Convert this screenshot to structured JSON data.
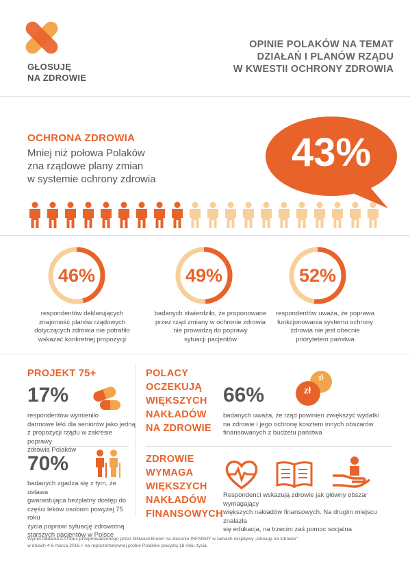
{
  "header": {
    "logo_line1": "GŁOSUJĘ",
    "logo_line2": "NA ZDROWIE",
    "title_line1": "OPINIE POLAKÓW NA TEMAT",
    "title_line2": "DZIAŁAŃ I PLANÓW RZĄDU",
    "title_line3": "W KWESTII OCHRONY ZDROWIA"
  },
  "health": {
    "heading": "OCHRONA ZDROWIA",
    "desc_line1": "Mniej niż połowa Polaków",
    "desc_line2": "zna rządowe plany zmian",
    "desc_line3": "w systemie ochrony zdrowia",
    "big_percent": "43%",
    "people_total": 20,
    "people_highlighted": 9
  },
  "stats": [
    {
      "value": "46%",
      "fraction": 0.46,
      "text": [
        "respondentów deklarujących",
        "znajomość planów rządowych",
        "dotyczących zdrowia nie potrafiło",
        "wskazać konkretnej propozycji"
      ]
    },
    {
      "value": "49%",
      "fraction": 0.49,
      "text": [
        "badanych stwierdziło, że proponowane",
        "przez rząd zmiany w ochronie zdrowia",
        "nie prowadzą do poprawy",
        "sytuacji pacjentów"
      ]
    },
    {
      "value": "52%",
      "fraction": 0.52,
      "text": [
        "respondentów uważa, że poprawa",
        "funkcjonowania systemu ochrony",
        "zdrowia nie jest obecnie",
        "priorytetem państwa"
      ]
    }
  ],
  "project": {
    "heading": "PROJEKT 75+",
    "pct1": "17%",
    "text1": [
      "respondentów wymieniło",
      "darmowe leki dla seniorów jako jedną",
      "z propozycji rządu w zakresie poprawy",
      "zdrowia Polaków"
    ],
    "pct2": "70%",
    "text2": [
      "badanych zgadza się z tym, że ustawa",
      "gwarantująca bezpłatny dostęp do",
      "części leków osobom powyżej 75 roku",
      "życia poprawi sytuację zdrowotną",
      "starszych pacjentów w Polsce"
    ]
  },
  "expect": {
    "heading": [
      "POLACY",
      "OCZEKUJĄ",
      "WIĘKSZYCH",
      "NAKŁADÓW",
      "NA ZDROWIE"
    ],
    "pct": "66%",
    "text": [
      "badanych uważa, że rząd powinien zwiększyć wydatki",
      "na zdrowie i jego ochronę kosztem innych obszarów",
      "finansowanych z budżetu państwa"
    ],
    "coin_label1": "zł",
    "coin_label2": "zł"
  },
  "needs": {
    "heading": [
      "ZDROWIE",
      "WYMAGA",
      "WIĘKSZYCH",
      "NAKŁADÓW",
      "FINANSOWYCH"
    ],
    "text": [
      "Respondenci wskazują zdrowie jak główny obszar wymagający",
      "większych nakładów finansowych. Na drugim miejscu znalazła",
      "się edukacja, na trzecim zaś pomoc socjalna"
    ]
  },
  "footnote": {
    "line1": "Wyniki badania CATIbus przeprowadzonego przez Millward Brown na zlecenie INFARMY w ramach inicjatywy „Głosuję na zdrowie\"",
    "line2": "w dniach 4-6 marca 2016 r. na reprezentatywnej próbie Polaków powyżej 18 roku życia."
  },
  "colors": {
    "accent": "#e8632a",
    "accent_light": "#f2a64b",
    "pale": "#f8cf9a",
    "text": "#555555"
  }
}
